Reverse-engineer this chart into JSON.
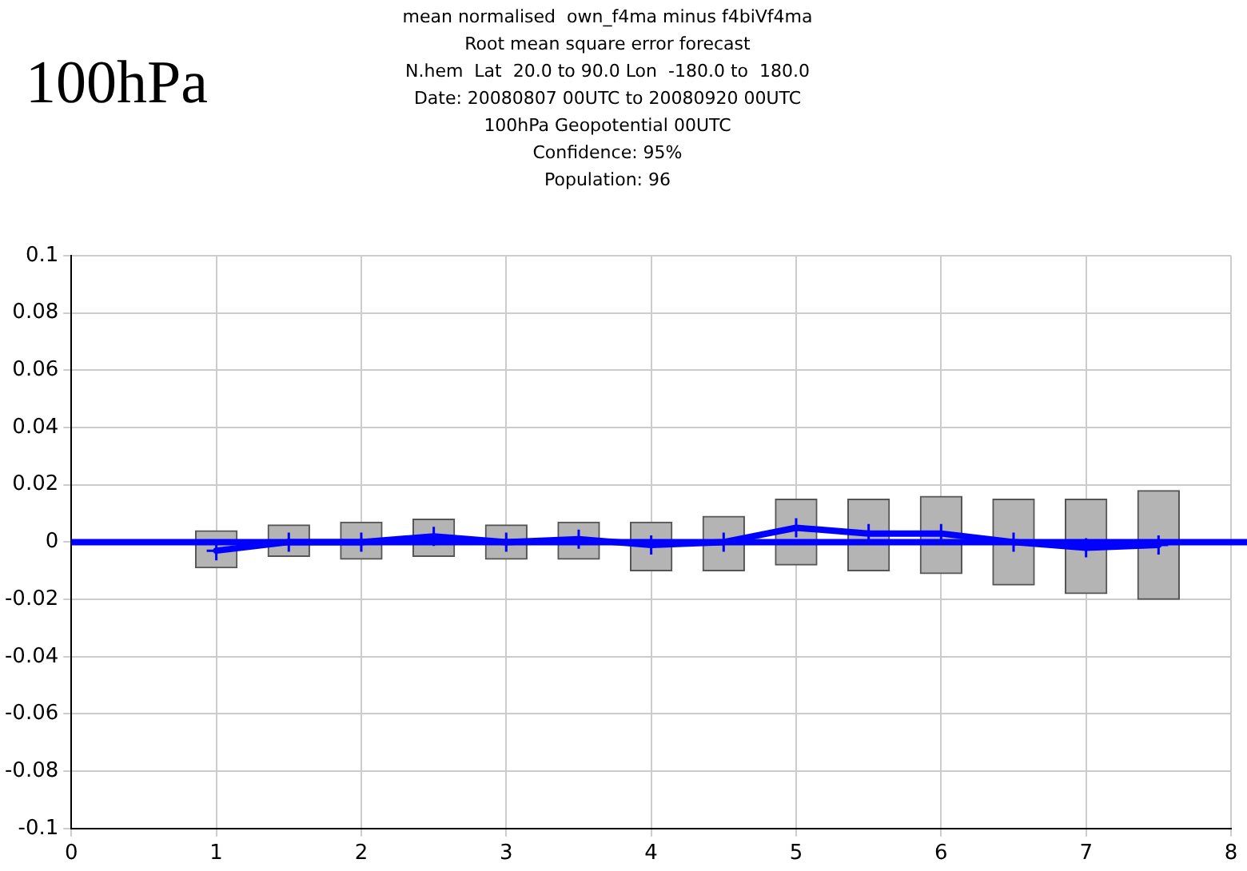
{
  "chart_data": {
    "type": "bar",
    "title": "mean normalised  own_f4ma minus f4biVf4ma",
    "subtitle": "Root mean square error forecast\nN.hem  Lat  20.0 to 90.0 Lon  -180.0 to  180.0\nDate: 20080807 00UTC to 20080920 00UTC\n100hPa Geopotential 00UTC\nConfidence: 95%\nPopulation: 96",
    "annotations": [
      "100hPa"
    ],
    "x": [
      1,
      1.5,
      2,
      2.5,
      3,
      3.5,
      4,
      4.5,
      5,
      5.5,
      6,
      6.5,
      7,
      7.5
    ],
    "series": [
      {
        "color": "#b4b4b4",
        "base": [
          -0.009,
          -0.005,
          -0.006,
          -0.005,
          -0.006,
          -0.006,
          -0.01,
          -0.01,
          -0.008,
          -0.01,
          -0.011,
          -0.015,
          -0.018,
          -0.02
        ],
        "values": [
          0.013,
          0.011,
          0.013,
          0.013,
          0.012,
          0.013,
          0.017,
          0.019,
          0.023,
          0.025,
          0.027,
          0.03,
          0.033,
          0.038
        ]
      },
      {
        "type": "line",
        "color": "#0000ff",
        "values": [
          -0.003,
          0,
          0,
          0.002,
          0,
          0.001,
          -0.001,
          0,
          0.005,
          0.003,
          0.003,
          0,
          -0.002,
          -0.001
        ]
      }
    ],
    "xlim": [
      0,
      8
    ],
    "xticks": [
      0,
      1,
      2,
      3,
      4,
      5,
      6,
      7,
      8
    ],
    "ylim": [
      -0.1,
      0.1
    ],
    "yticks": [
      -0.1,
      -0.08,
      -0.06,
      -0.04,
      -0.02,
      0,
      0.02,
      0.04,
      0.06,
      0.08,
      0.1
    ],
    "ref_lines": [
      {
        "axis": "y",
        "value": 0,
        "color": "#0000ff"
      }
    ],
    "grid": true,
    "legend": false,
    "marker": "cross",
    "line_style": "solid"
  }
}
